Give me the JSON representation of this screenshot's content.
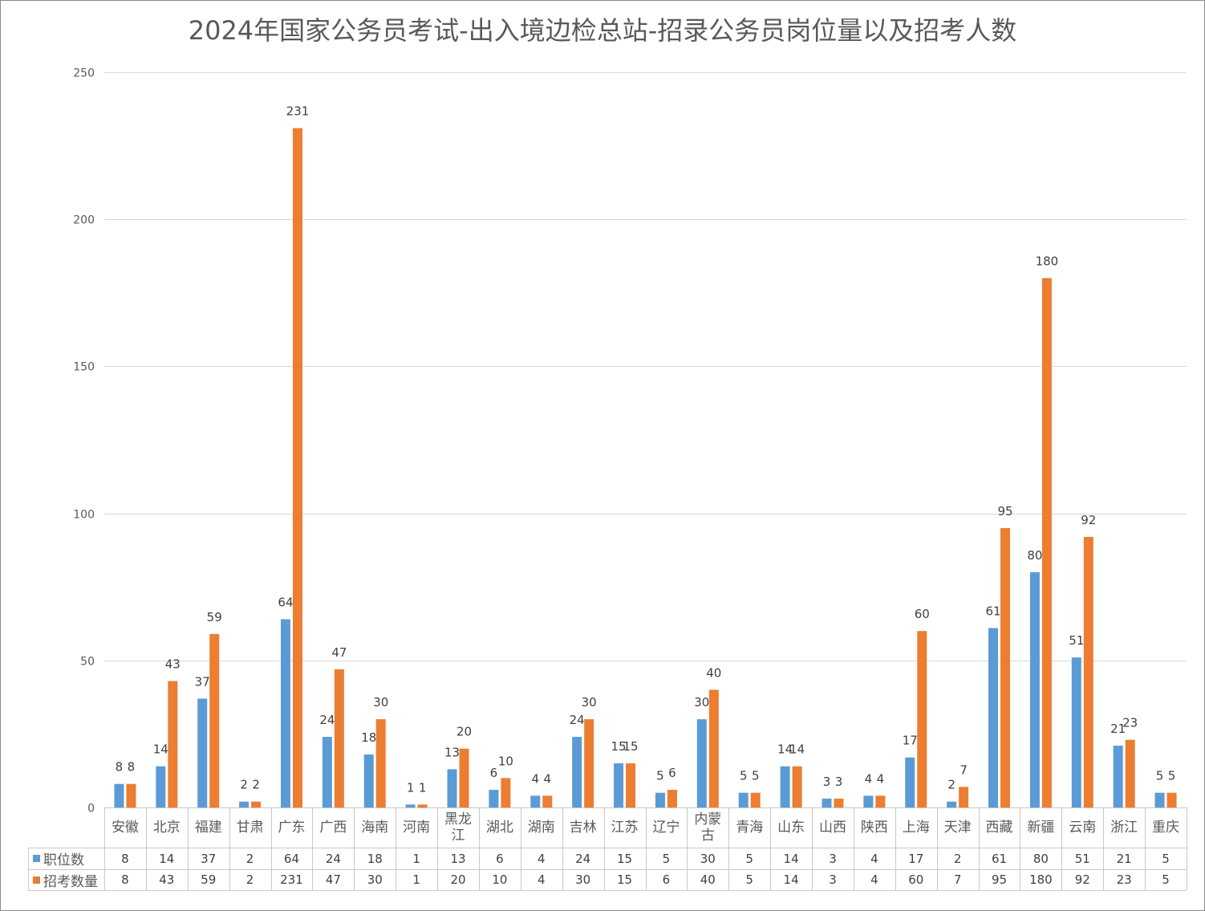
{
  "chart_data": {
    "type": "bar",
    "title": "2024年国家公务员考试-出入境边检总站-招录公务员岗位量以及招考人数",
    "categories": [
      "安徽",
      "北京",
      "福建",
      "甘肃",
      "广东",
      "广西",
      "海南",
      "河南",
      "黑龙江",
      "湖北",
      "湖南",
      "吉林",
      "江苏",
      "辽宁",
      "内蒙古",
      "青海",
      "山东",
      "山西",
      "陕西",
      "上海",
      "天津",
      "西藏",
      "新疆",
      "云南",
      "浙江",
      "重庆"
    ],
    "series": [
      {
        "name": "职位数",
        "color": "#5B9BD5",
        "values": [
          8,
          14,
          37,
          2,
          64,
          24,
          18,
          1,
          13,
          6,
          4,
          24,
          15,
          5,
          30,
          5,
          14,
          3,
          4,
          17,
          2,
          61,
          80,
          51,
          21,
          5
        ]
      },
      {
        "name": "招考数量",
        "color": "#ED7D31",
        "values": [
          8,
          43,
          59,
          2,
          231,
          47,
          30,
          1,
          20,
          10,
          4,
          30,
          15,
          6,
          40,
          5,
          14,
          3,
          4,
          60,
          7,
          95,
          180,
          92,
          23,
          5
        ]
      }
    ],
    "ylim": [
      0,
      250
    ],
    "yticks": [
      0,
      50,
      100,
      150,
      200,
      250
    ],
    "grid": true,
    "data_labels": true,
    "legend": "bottom-left"
  }
}
